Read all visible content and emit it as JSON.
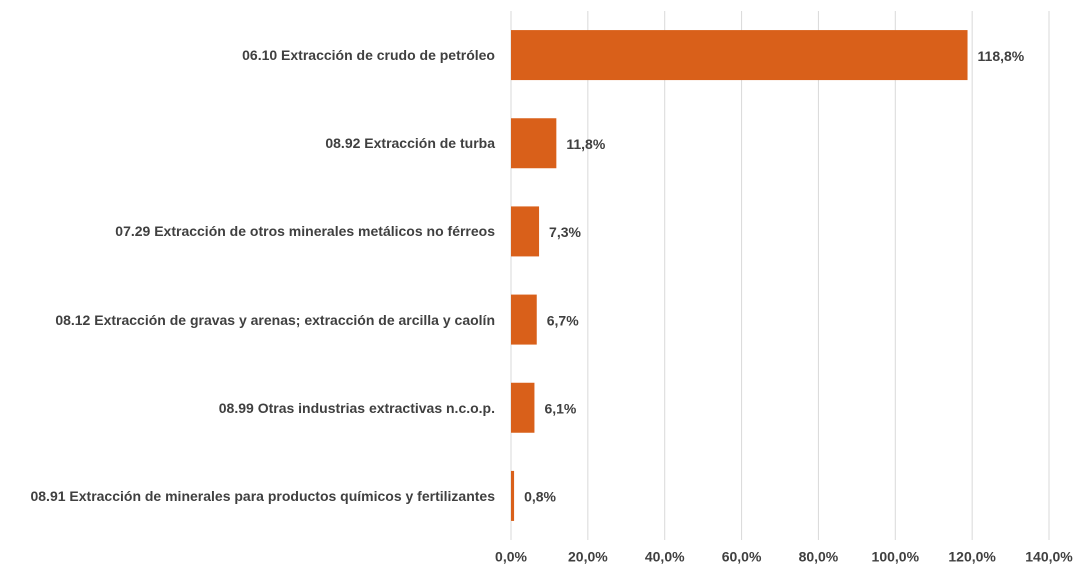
{
  "chart_data": {
    "type": "bar",
    "orientation": "horizontal",
    "categories": [
      "06.10 Extracción de crudo de petróleo",
      "08.92 Extracción de turba",
      "07.29 Extracción de otros minerales metálicos no férreos",
      "08.12 Extracción de gravas y arenas; extracción de arcilla y caolín",
      "08.99 Otras industrias extractivas n.c.o.p.",
      "08.91 Extracción de minerales para productos químicos y fertilizantes"
    ],
    "values": [
      118.8,
      11.8,
      7.3,
      6.7,
      6.1,
      0.8
    ],
    "value_labels": [
      "118,8%",
      "11,8%",
      "7,3%",
      "6,7%",
      "6,1%",
      "0,8%"
    ],
    "color": "#d9601a",
    "xlim": [
      0,
      140
    ],
    "xticks": [
      {
        "value": 0,
        "label": "0,0%"
      },
      {
        "value": 20,
        "label": "20,0%"
      },
      {
        "value": 40,
        "label": "40,0%"
      },
      {
        "value": 60,
        "label": "60,0%"
      },
      {
        "value": 80,
        "label": "80,0%"
      },
      {
        "value": 100,
        "label": "100,0%"
      },
      {
        "value": 120,
        "label": "120,0%"
      },
      {
        "value": 140,
        "label": "140,0%"
      }
    ],
    "grid": true
  }
}
